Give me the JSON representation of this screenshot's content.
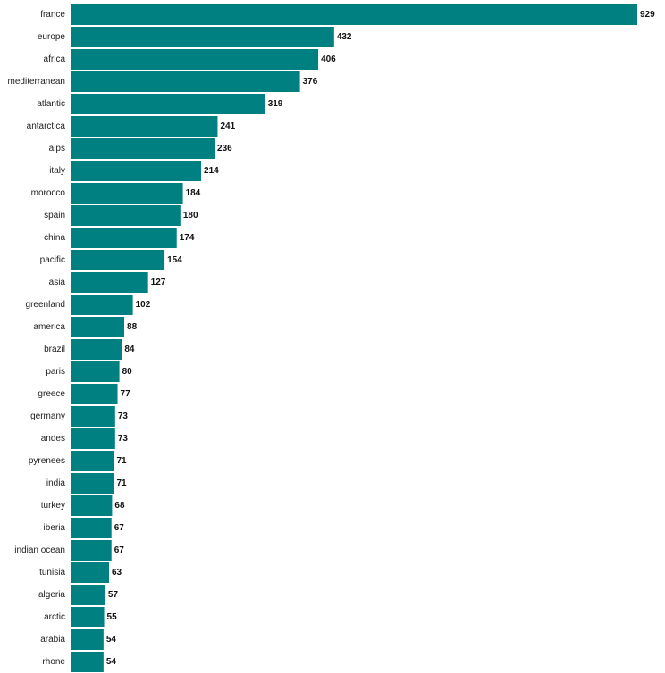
{
  "chart_data": {
    "type": "bar",
    "orientation": "horizontal",
    "categories": [
      "france",
      "europe",
      "africa",
      "mediterranean",
      "atlantic",
      "antarctica",
      "alps",
      "italy",
      "morocco",
      "spain",
      "china",
      "pacific",
      "asia",
      "greenland",
      "america",
      "brazil",
      "paris",
      "greece",
      "germany",
      "andes",
      "pyrenees",
      "india",
      "turkey",
      "iberia",
      "indian ocean",
      "tunisia",
      "algeria",
      "arctic",
      "arabia",
      "rhone"
    ],
    "values": [
      929,
      432,
      406,
      376,
      319,
      241,
      236,
      214,
      184,
      180,
      174,
      154,
      127,
      102,
      88,
      84,
      80,
      77,
      73,
      73,
      71,
      71,
      68,
      67,
      67,
      63,
      57,
      55,
      54,
      54
    ],
    "bar_color": "#008080",
    "xlim": [
      0,
      929
    ],
    "grid": false
  }
}
